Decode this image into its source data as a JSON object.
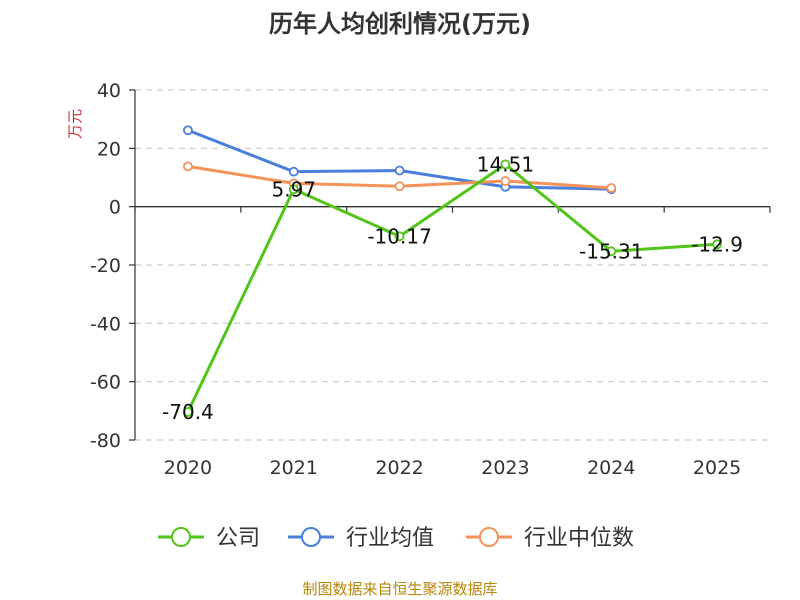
{
  "chart_data": {
    "type": "line",
    "title": "历年人均创利情况(万元)",
    "ylabel": "万元",
    "categories": [
      "2020",
      "2021",
      "2022",
      "2023",
      "2024",
      "2025"
    ],
    "ylim": [
      -80,
      40
    ],
    "yticks": [
      40,
      20,
      0,
      -20,
      -40,
      -60,
      -80
    ],
    "grid": true,
    "legend_position": "bottom",
    "series": [
      {
        "name": "公司",
        "color": "#52c41a",
        "values": [
          -70.4,
          5.97,
          -10.17,
          14.51,
          -15.31,
          -12.9
        ],
        "labels": [
          "-70.4",
          "5.97",
          "-10.17",
          "14.51",
          "-15.31",
          "-12.9"
        ]
      },
      {
        "name": "行业均值",
        "color": "#4a7fdb",
        "values": [
          26.2,
          12.0,
          12.4,
          6.8,
          6.0,
          null
        ]
      },
      {
        "name": "行业中位数",
        "color": "#f5925a",
        "values": [
          13.8,
          8.0,
          7.0,
          8.8,
          6.4,
          null
        ]
      }
    ]
  },
  "source": "制图数据来自恒生聚源数据库"
}
